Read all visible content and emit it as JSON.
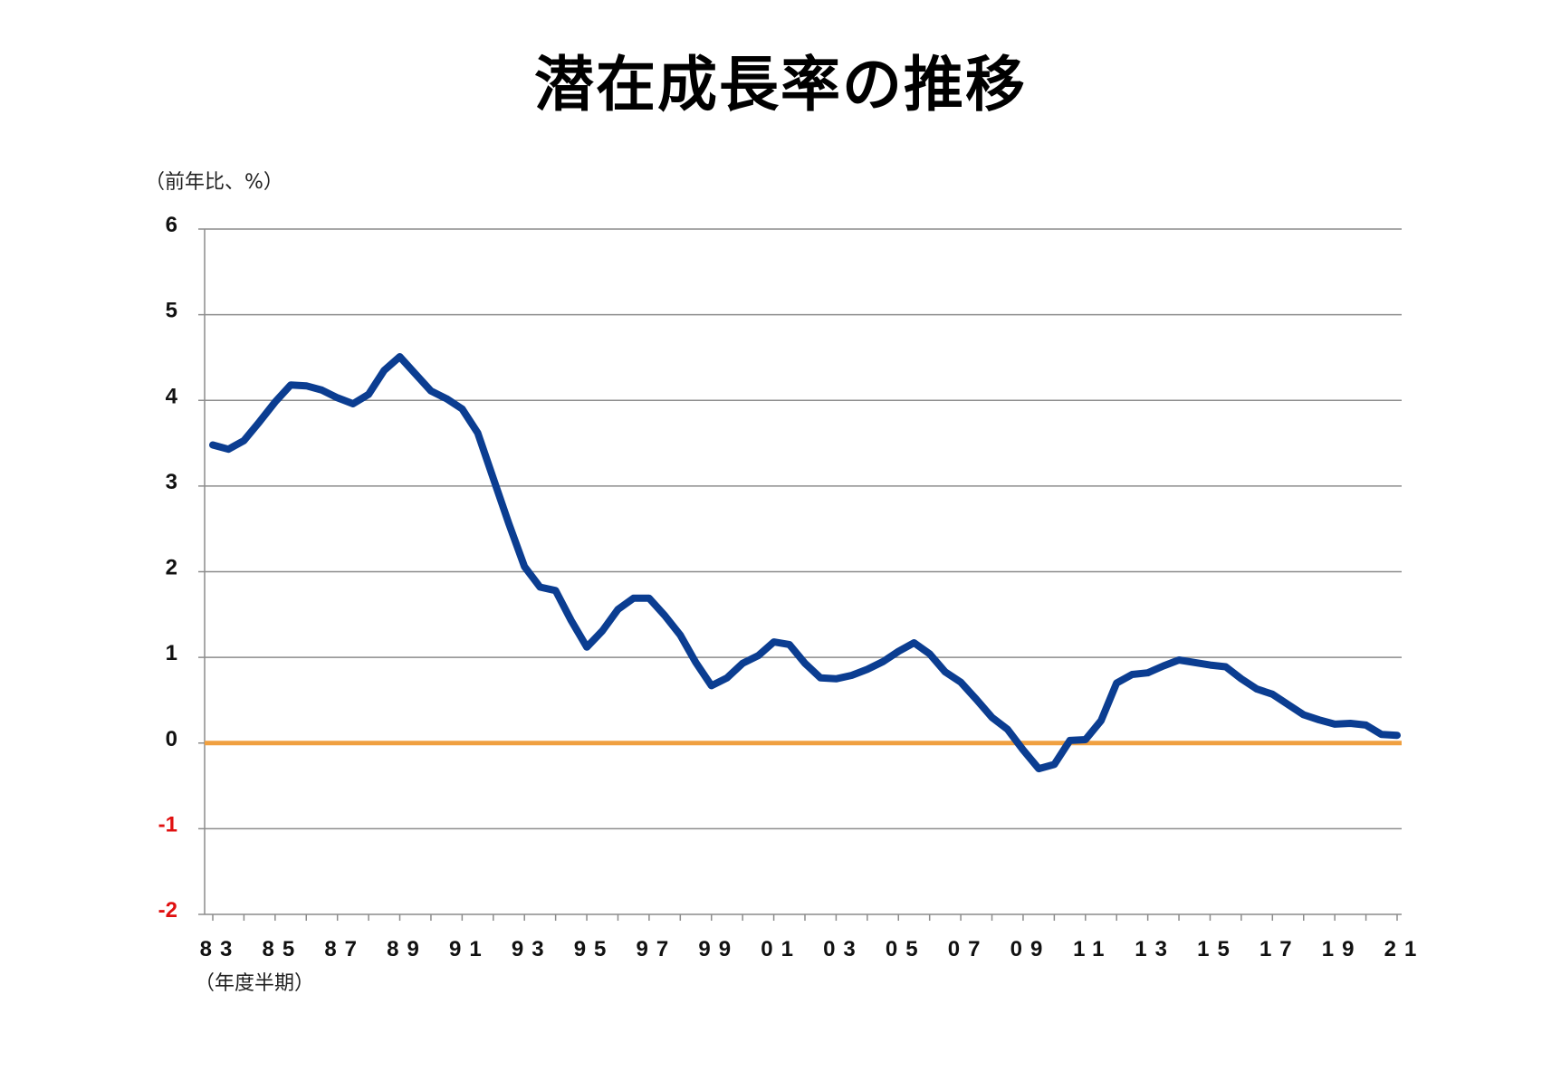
{
  "chart_data": {
    "type": "line",
    "title": "潜在成長率の推移",
    "ylabel": "（前年比、%）",
    "xlabel": "（年度半期）",
    "ylim": [
      -2,
      6
    ],
    "yticks": [
      6,
      5,
      4,
      3,
      2,
      1,
      0,
      -1,
      -2
    ],
    "negative_tick_color": "#e01010",
    "grid": true,
    "x_tick_labels": [
      "83",
      "85",
      "87",
      "89",
      "91",
      "93",
      "95",
      "97",
      "99",
      "01",
      "03",
      "05",
      "07",
      "09",
      "11",
      "13",
      "15",
      "17",
      "19",
      "21"
    ],
    "x_start": "1983 H1",
    "x_step": "half-year",
    "zero_line_color": "#f0a040",
    "series": [
      {
        "color": "#0b3d91",
        "values": [
          3.48,
          3.43,
          3.53,
          3.75,
          3.98,
          4.18,
          4.17,
          4.12,
          4.03,
          3.96,
          4.07,
          4.35,
          4.51,
          4.31,
          4.11,
          4.02,
          3.9,
          3.62,
          3.09,
          2.56,
          2.06,
          1.82,
          1.78,
          1.43,
          1.12,
          1.31,
          1.56,
          1.69,
          1.69,
          1.49,
          1.26,
          0.94,
          0.67,
          0.76,
          0.93,
          1.02,
          1.18,
          1.15,
          0.93,
          0.76,
          0.75,
          0.79,
          0.86,
          0.95,
          1.07,
          1.17,
          1.04,
          0.83,
          0.71,
          0.51,
          0.3,
          0.16,
          -0.08,
          -0.3,
          -0.25,
          0.03,
          0.04,
          0.26,
          0.7,
          0.8,
          0.82,
          0.9,
          0.97,
          0.94,
          0.91,
          0.89,
          0.75,
          0.63,
          0.57,
          0.45,
          0.33,
          0.27,
          0.22,
          0.23,
          0.21,
          0.1,
          0.09
        ]
      }
    ]
  }
}
